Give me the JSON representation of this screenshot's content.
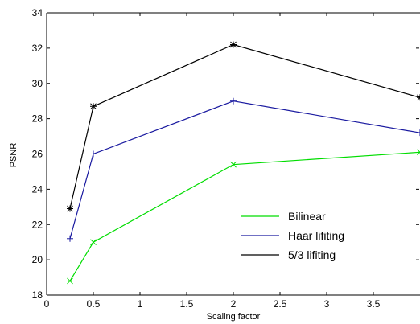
{
  "chart_data": {
    "type": "line",
    "title": "",
    "xlabel": "Scaling factor",
    "ylabel": "PSNR",
    "xlim": [
      0,
      4
    ],
    "ylim": [
      18,
      34
    ],
    "xticks": [
      0,
      0.5,
      1,
      1.5,
      2,
      2.5,
      3,
      3.5
    ],
    "yticks": [
      18,
      20,
      22,
      24,
      26,
      28,
      30,
      32,
      34
    ],
    "x": [
      0.25,
      0.5,
      2,
      4
    ],
    "grid": false,
    "legend_position": "lower-right",
    "series": [
      {
        "name": "Bilinear",
        "color": "#00dd00",
        "marker": "x",
        "values": [
          18.8,
          21.0,
          25.4,
          26.1
        ]
      },
      {
        "name": " Haar lifiting",
        "color": "#1a1aa0",
        "marker": "+",
        "values": [
          21.2,
          26.0,
          29.0,
          27.2
        ]
      },
      {
        "name": "5/3 lifiting",
        "color": "#000000",
        "marker": "*",
        "values": [
          22.9,
          28.7,
          32.2,
          29.2
        ]
      }
    ]
  }
}
